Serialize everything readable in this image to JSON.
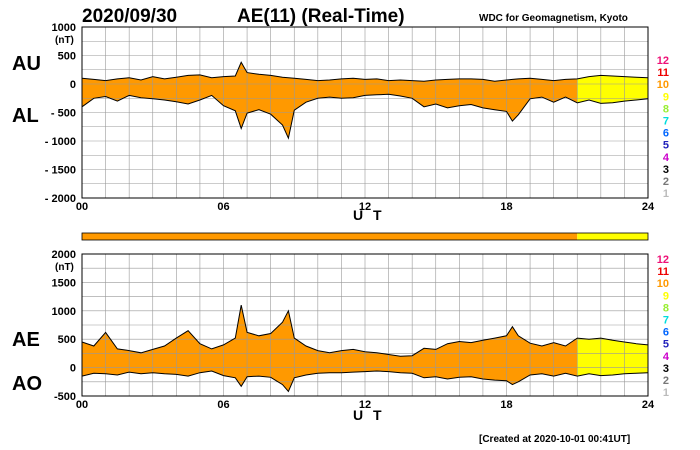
{
  "header": {
    "date": "2020/09/30",
    "title": "AE(11) (Real-Time)",
    "source": "WDC for Geomagnetism, Kyoto"
  },
  "footer": {
    "created": "[Created at 2020-10-01 00:41UT]"
  },
  "colors": {
    "fill_main": "#ff9900",
    "fill_recent": "#ffff00",
    "grid": "#999999",
    "trace": "#000000"
  },
  "legend_levels": [
    {
      "label": "12",
      "color": "#ee1177"
    },
    {
      "label": "11",
      "color": "#ee0000"
    },
    {
      "label": "10",
      "color": "#ff9900"
    },
    {
      "label": "9",
      "color": "#ffff00"
    },
    {
      "label": "8",
      "color": "#99ee33"
    },
    {
      "label": "7",
      "color": "#00dddd"
    },
    {
      "label": "6",
      "color": "#0066ff"
    },
    {
      "label": "5",
      "color": "#2222bb"
    },
    {
      "label": "4",
      "color": "#cc00cc"
    },
    {
      "label": "3",
      "color": "#000000"
    },
    {
      "label": "2",
      "color": "#777777"
    },
    {
      "label": "1",
      "color": "#bbbbbb"
    }
  ],
  "status_bar": {
    "segments": [
      {
        "from": 0,
        "to": 21,
        "level": "10"
      },
      {
        "from": 21,
        "to": 24,
        "level": "9"
      }
    ]
  },
  "chart_data": [
    {
      "type": "area",
      "panel": "AU/AL",
      "upper_label": "AU",
      "lower_label": "AL",
      "unit": "(nT)",
      "xlabel": "U T",
      "xlim": [
        0,
        24
      ],
      "ylim": [
        -2000,
        1000
      ],
      "x_ticks": [
        "00",
        "06",
        "12",
        "18",
        "24"
      ],
      "y_ticks": [
        "1000",
        "500",
        "0",
        "- 500",
        "- 1000",
        "- 1500",
        "- 2000"
      ],
      "x": [
        0,
        0.5,
        1,
        1.5,
        2,
        2.5,
        3,
        3.5,
        4,
        4.5,
        5,
        5.5,
        6,
        6.5,
        6.75,
        7,
        7.5,
        8,
        8.5,
        8.75,
        9,
        9.5,
        10,
        10.5,
        11,
        11.5,
        12,
        12.5,
        13,
        13.5,
        14,
        14.5,
        15,
        15.5,
        16,
        16.5,
        17,
        17.5,
        18,
        18.25,
        18.5,
        19,
        19.5,
        20,
        20.5,
        21,
        21.5,
        22,
        22.5,
        23,
        23.5,
        24
      ],
      "series": [
        {
          "name": "AU",
          "values": [
            100,
            80,
            60,
            90,
            110,
            70,
            130,
            90,
            120,
            150,
            160,
            110,
            130,
            140,
            380,
            200,
            170,
            150,
            120,
            110,
            100,
            80,
            60,
            70,
            90,
            100,
            80,
            90,
            60,
            70,
            60,
            50,
            70,
            80,
            90,
            90,
            80,
            50,
            70,
            80,
            90,
            100,
            80,
            60,
            80,
            90,
            130,
            150,
            140,
            130,
            120,
            110
          ]
        },
        {
          "name": "AL",
          "values": [
            -400,
            -250,
            -220,
            -300,
            -200,
            -240,
            -260,
            -280,
            -310,
            -350,
            -280,
            -200,
            -380,
            -470,
            -780,
            -510,
            -450,
            -530,
            -720,
            -950,
            -460,
            -320,
            -250,
            -230,
            -250,
            -240,
            -200,
            -190,
            -180,
            -210,
            -250,
            -400,
            -350,
            -420,
            -380,
            -360,
            -420,
            -450,
            -480,
            -650,
            -540,
            -260,
            -230,
            -320,
            -230,
            -330,
            -280,
            -340,
            -330,
            -300,
            -280,
            -260
          ]
        }
      ]
    },
    {
      "type": "area",
      "panel": "AE/AO",
      "upper_label": "AE",
      "lower_label": "AO",
      "unit": "(nT)",
      "xlabel": "U T",
      "xlim": [
        0,
        24
      ],
      "ylim": [
        -500,
        2000
      ],
      "x_ticks": [
        "00",
        "06",
        "12",
        "18",
        "24"
      ],
      "y_ticks": [
        "2000",
        "1500",
        "1000",
        "500",
        "0",
        "-500"
      ],
      "x": [
        0,
        0.5,
        1,
        1.5,
        2,
        2.5,
        3,
        3.5,
        4,
        4.5,
        5,
        5.5,
        6,
        6.5,
        6.75,
        7,
        7.5,
        8,
        8.5,
        8.75,
        9,
        9.5,
        10,
        10.5,
        11,
        11.5,
        12,
        12.5,
        13,
        13.5,
        14,
        14.5,
        15,
        15.5,
        16,
        16.5,
        17,
        17.5,
        18,
        18.25,
        18.5,
        19,
        19.5,
        20,
        20.5,
        21,
        21.5,
        22,
        22.5,
        23,
        23.5,
        24
      ],
      "series": [
        {
          "name": "AE",
          "values": [
            450,
            380,
            620,
            330,
            300,
            260,
            320,
            380,
            520,
            650,
            420,
            330,
            400,
            520,
            1100,
            620,
            560,
            600,
            800,
            1000,
            520,
            380,
            300,
            260,
            300,
            320,
            280,
            260,
            230,
            200,
            210,
            340,
            320,
            420,
            460,
            440,
            480,
            520,
            560,
            720,
            560,
            430,
            380,
            440,
            380,
            520,
            500,
            520,
            480,
            450,
            420,
            400
          ]
        },
        {
          "name": "AO",
          "values": [
            -150,
            -100,
            -110,
            -130,
            -80,
            -110,
            -90,
            -110,
            -120,
            -150,
            -90,
            -60,
            -140,
            -180,
            -330,
            -160,
            -150,
            -170,
            -300,
            -420,
            -180,
            -130,
            -100,
            -90,
            -90,
            -80,
            -70,
            -60,
            -70,
            -90,
            -100,
            -180,
            -160,
            -200,
            -170,
            -160,
            -200,
            -220,
            -230,
            -300,
            -250,
            -130,
            -110,
            -150,
            -100,
            -150,
            -110,
            -140,
            -130,
            -110,
            -100,
            -90
          ]
        }
      ]
    }
  ]
}
